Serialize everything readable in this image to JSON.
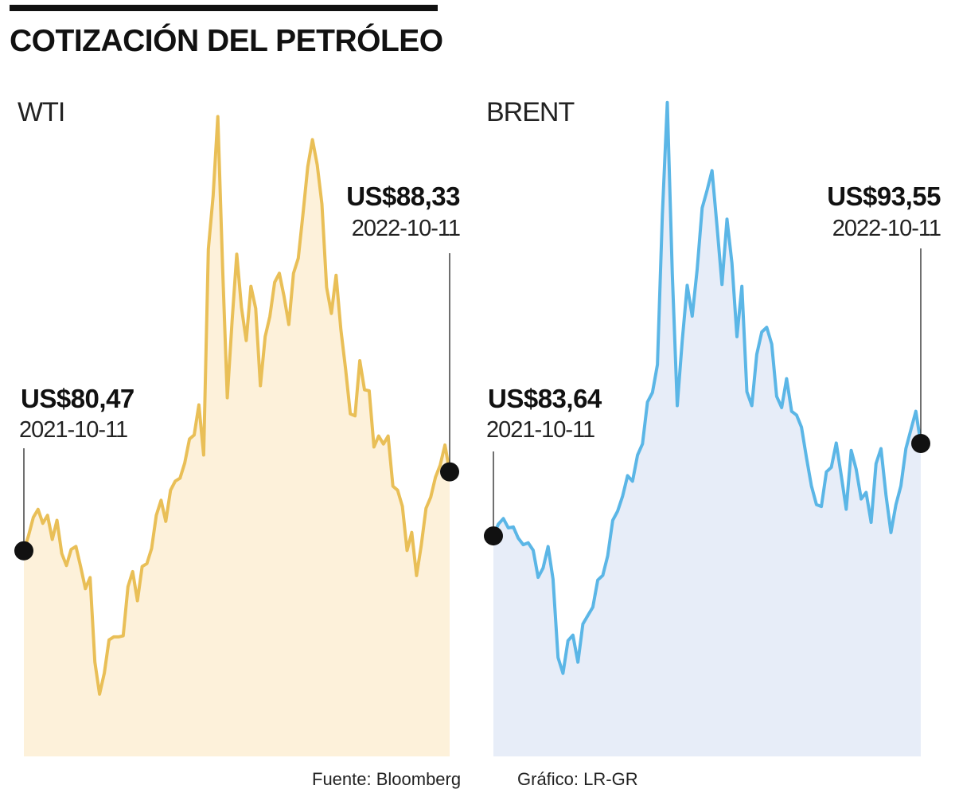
{
  "title": "COTIZACIÓN DEL PETRÓLEO",
  "footer": {
    "source": "Fuente: Bloomberg",
    "credit": "Gráfico: LR-GR"
  },
  "chart_data": [
    {
      "type": "area",
      "name": "WTI",
      "start": {
        "value_label": "US$80,47",
        "date": "2021-10-11",
        "value": 80.47
      },
      "end": {
        "value_label": "US$88,33",
        "date": "2022-10-11",
        "value": 88.33
      },
      "x_range": [
        "2021-10-11",
        "2022-10-11"
      ],
      "ylim": [
        60,
        125
      ],
      "series_color": "#E9BF57",
      "fill_color": "#FDF1DA",
      "values": [
        80.47,
        82.0,
        83.8,
        84.6,
        83.2,
        84.0,
        81.6,
        83.5,
        80.2,
        79.0,
        80.6,
        80.9,
        78.9,
        76.7,
        77.8,
        69.4,
        66.2,
        68.3,
        71.6,
        71.9,
        71.9,
        72.0,
        76.9,
        78.4,
        75.5,
        78.9,
        79.2,
        80.7,
        84.0,
        85.5,
        83.4,
        86.5,
        87.4,
        87.7,
        89.2,
        91.6,
        92.0,
        95.0,
        90.0,
        110.5,
        115.8,
        123.7,
        108.7,
        95.7,
        103.3,
        110.0,
        104.7,
        101.4,
        106.8,
        104.6,
        96.9,
        101.8,
        103.8,
        107.2,
        108.1,
        105.8,
        103.0,
        108.1,
        109.6,
        114.0,
        118.7,
        121.4,
        118.9,
        115.0,
        106.7,
        104.1,
        107.9,
        102.5,
        98.6,
        94.1,
        93.9,
        99.4,
        96.5,
        96.4,
        90.8,
        91.9,
        91.1,
        91.9,
        86.9,
        86.5,
        84.9,
        80.5,
        82.3,
        78.0,
        81.0,
        84.7,
        85.8,
        87.8,
        89.0,
        91.0,
        88.33
      ]
    },
    {
      "type": "area",
      "name": "BRENT",
      "start": {
        "value_label": "US$83,64",
        "date": "2021-10-11",
        "value": 83.64
      },
      "end": {
        "value_label": "US$93,55",
        "date": "2022-10-11",
        "value": 93.55
      },
      "x_range": [
        "2021-10-11",
        "2022-10-11"
      ],
      "ylim": [
        60,
        130
      ],
      "series_color": "#5BB6E6",
      "fill_color": "#E7EDF8",
      "values": [
        83.64,
        84.9,
        85.5,
        84.5,
        84.6,
        83.4,
        82.7,
        82.9,
        82.1,
        79.2,
        80.2,
        82.5,
        79.0,
        70.6,
        68.9,
        72.4,
        73.0,
        70.1,
        74.2,
        75.1,
        76.0,
        78.9,
        79.4,
        81.5,
        85.3,
        86.3,
        87.9,
        90.1,
        89.5,
        92.3,
        93.5,
        98.0,
        99.0,
        102.0,
        118.1,
        130.1,
        111.7,
        97.6,
        104.6,
        110.5,
        107.2,
        112.2,
        118.8,
        120.7,
        122.8,
        116.8,
        110.6,
        117.6,
        112.9,
        105.0,
        110.4,
        99.1,
        97.6,
        103.1,
        105.5,
        106.0,
        104.2,
        98.6,
        97.4,
        100.5,
        97.0,
        96.6,
        95.3,
        92.0,
        89.0,
        87.0,
        86.8,
        90.5,
        91.0,
        93.6,
        90.1,
        86.5,
        92.8,
        90.8,
        87.6,
        88.3,
        85.1,
        91.4,
        93.0,
        88.0,
        84.0,
        87.0,
        89.0,
        93.0,
        95.0,
        97.0,
        93.55
      ]
    }
  ]
}
